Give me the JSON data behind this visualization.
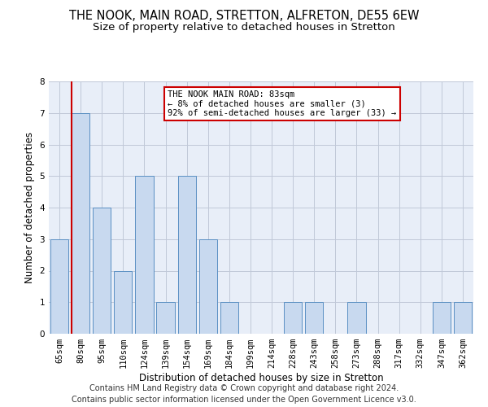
{
  "title1": "THE NOOK, MAIN ROAD, STRETTON, ALFRETON, DE55 6EW",
  "title2": "Size of property relative to detached houses in Stretton",
  "xlabel": "Distribution of detached houses by size in Stretton",
  "ylabel": "Number of detached properties",
  "categories": [
    "65sqm",
    "80sqm",
    "95sqm",
    "110sqm",
    "124sqm",
    "139sqm",
    "154sqm",
    "169sqm",
    "184sqm",
    "199sqm",
    "214sqm",
    "228sqm",
    "243sqm",
    "258sqm",
    "273sqm",
    "288sqm",
    "317sqm",
    "332sqm",
    "347sqm",
    "362sqm"
  ],
  "values": [
    3,
    7,
    4,
    2,
    5,
    1,
    5,
    3,
    1,
    0,
    0,
    1,
    1,
    0,
    1,
    0,
    0,
    0,
    1,
    1
  ],
  "bar_color": "#c8d9ef",
  "bar_edge_color": "#5a8fc3",
  "highlight_index": 1,
  "highlight_line_color": "#cc0000",
  "annotation_text": "THE NOOK MAIN ROAD: 83sqm\n← 8% of detached houses are smaller (3)\n92% of semi-detached houses are larger (33) →",
  "annotation_box_edge": "#cc0000",
  "ylim": [
    0,
    8
  ],
  "yticks": [
    0,
    1,
    2,
    3,
    4,
    5,
    6,
    7,
    8
  ],
  "footer1": "Contains HM Land Registry data © Crown copyright and database right 2024.",
  "footer2": "Contains public sector information licensed under the Open Government Licence v3.0.",
  "bg_color": "#ffffff",
  "grid_color": "#c0c8d8",
  "title1_fontsize": 10.5,
  "title2_fontsize": 9.5,
  "xlabel_fontsize": 8.5,
  "ylabel_fontsize": 8.5,
  "tick_fontsize": 7.5,
  "footer_fontsize": 7.0
}
